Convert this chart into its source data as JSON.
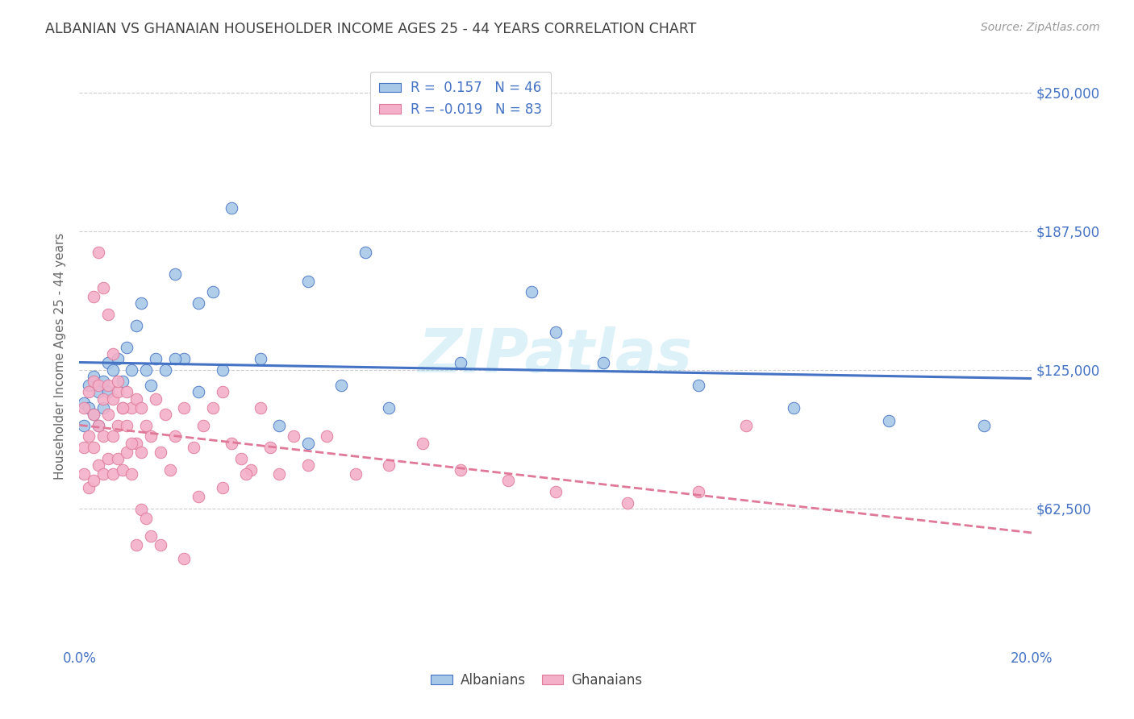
{
  "title": "ALBANIAN VS GHANAIAN HOUSEHOLDER INCOME AGES 25 - 44 YEARS CORRELATION CHART",
  "source": "Source: ZipAtlas.com",
  "ylabel_label": "Householder Income Ages 25 - 44 years",
  "ytick_labels": [
    "$62,500",
    "$125,000",
    "$187,500",
    "$250,000"
  ],
  "ytick_values": [
    62500,
    125000,
    187500,
    250000
  ],
  "ymin": 0,
  "ymax": 262500,
  "xmin": 0.0,
  "xmax": 0.2,
  "watermark": "ZIPatlas",
  "legend_albanian_R": " 0.157",
  "legend_albanian_N": "46",
  "legend_ghanaian_R": "-0.019",
  "legend_ghanaian_N": "83",
  "albanian_color": "#a8c8e8",
  "ghanaian_color": "#f4b0c8",
  "albanian_line_color": "#4472c4",
  "ghanaian_line_color": "#e07898",
  "axis_label_color": "#4472c4",
  "title_color": "#404040",
  "albanian_x": [
    0.001,
    0.001,
    0.002,
    0.002,
    0.003,
    0.003,
    0.004,
    0.004,
    0.005,
    0.005,
    0.006,
    0.006,
    0.007,
    0.008,
    0.009,
    0.01,
    0.011,
    0.012,
    0.013,
    0.014,
    0.015,
    0.016,
    0.018,
    0.02,
    0.022,
    0.025,
    0.028,
    0.032,
    0.038,
    0.042,
    0.048,
    0.055,
    0.065,
    0.08,
    0.095,
    0.11,
    0.13,
    0.15,
    0.17,
    0.19,
    0.048,
    0.06,
    0.1,
    0.03,
    0.025,
    0.02
  ],
  "albanian_y": [
    110000,
    100000,
    118000,
    108000,
    122000,
    105000,
    115000,
    100000,
    120000,
    108000,
    128000,
    115000,
    125000,
    130000,
    120000,
    135000,
    125000,
    145000,
    155000,
    125000,
    118000,
    130000,
    125000,
    168000,
    130000,
    155000,
    160000,
    198000,
    130000,
    100000,
    92000,
    118000,
    108000,
    128000,
    160000,
    128000,
    118000,
    108000,
    102000,
    100000,
    165000,
    178000,
    142000,
    125000,
    115000,
    130000
  ],
  "ghanaian_x": [
    0.001,
    0.001,
    0.001,
    0.002,
    0.002,
    0.002,
    0.003,
    0.003,
    0.003,
    0.003,
    0.004,
    0.004,
    0.004,
    0.005,
    0.005,
    0.005,
    0.006,
    0.006,
    0.006,
    0.007,
    0.007,
    0.007,
    0.008,
    0.008,
    0.008,
    0.009,
    0.009,
    0.01,
    0.01,
    0.011,
    0.011,
    0.012,
    0.012,
    0.013,
    0.013,
    0.014,
    0.015,
    0.016,
    0.017,
    0.018,
    0.019,
    0.02,
    0.022,
    0.024,
    0.026,
    0.028,
    0.03,
    0.032,
    0.034,
    0.036,
    0.038,
    0.04,
    0.042,
    0.045,
    0.048,
    0.052,
    0.058,
    0.065,
    0.072,
    0.08,
    0.09,
    0.1,
    0.115,
    0.13,
    0.003,
    0.004,
    0.005,
    0.006,
    0.007,
    0.008,
    0.009,
    0.01,
    0.011,
    0.012,
    0.013,
    0.014,
    0.015,
    0.017,
    0.022,
    0.025,
    0.03,
    0.035,
    0.14
  ],
  "ghanaian_y": [
    108000,
    90000,
    78000,
    115000,
    95000,
    72000,
    120000,
    105000,
    90000,
    75000,
    118000,
    100000,
    82000,
    112000,
    95000,
    78000,
    118000,
    105000,
    85000,
    112000,
    95000,
    78000,
    115000,
    100000,
    85000,
    108000,
    80000,
    115000,
    88000,
    108000,
    78000,
    112000,
    92000,
    108000,
    88000,
    100000,
    95000,
    112000,
    88000,
    105000,
    80000,
    95000,
    108000,
    90000,
    100000,
    108000,
    115000,
    92000,
    85000,
    80000,
    108000,
    90000,
    78000,
    95000,
    82000,
    95000,
    78000,
    82000,
    92000,
    80000,
    75000,
    70000,
    65000,
    70000,
    158000,
    178000,
    162000,
    150000,
    132000,
    120000,
    108000,
    100000,
    92000,
    46000,
    62000,
    58000,
    50000,
    46000,
    40000,
    68000,
    72000,
    78000,
    100000
  ]
}
